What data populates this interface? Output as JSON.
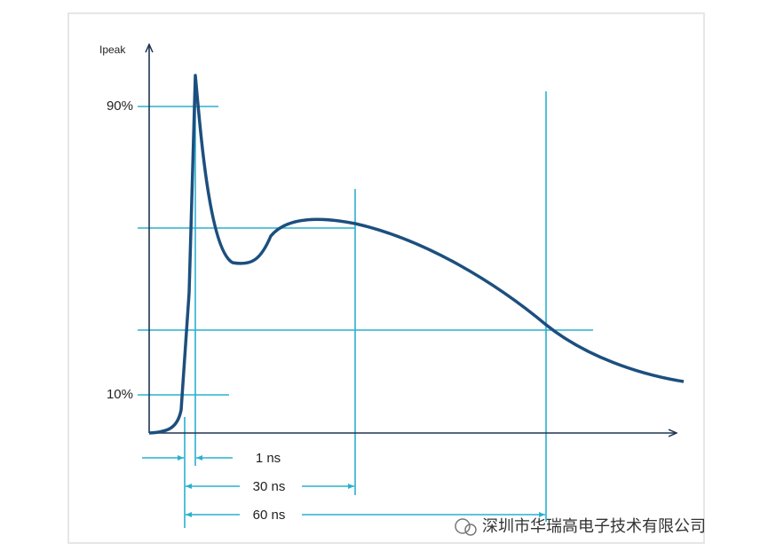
{
  "axis": {
    "y_label": "Ipeak"
  },
  "levels": [
    "90%",
    "10%"
  ],
  "durations": [
    "1 ns",
    "30 ns",
    "60 ns"
  ],
  "watermark": "深圳市华瑞高电子技术有限公司"
}
